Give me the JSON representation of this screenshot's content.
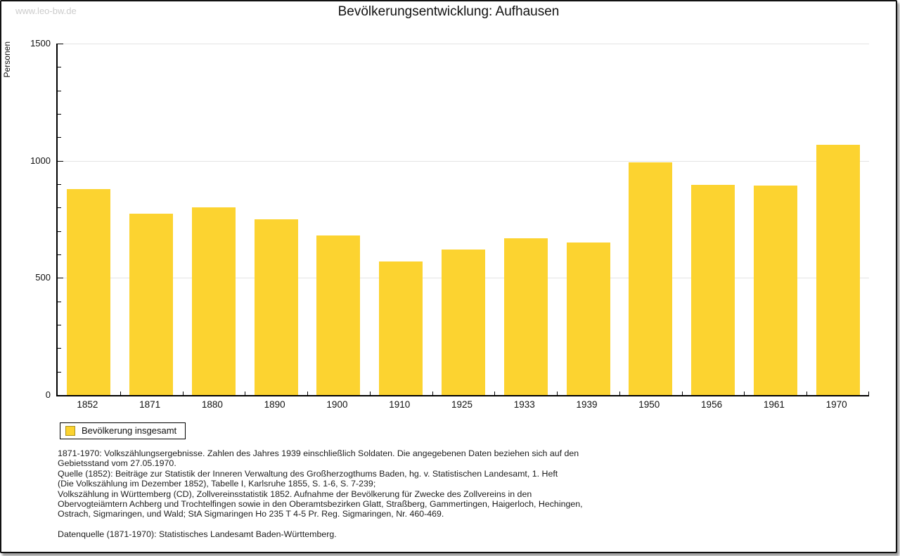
{
  "watermark": "www.leo-bw.de",
  "title": "Bevölkerungsentwicklung: Aufhausen",
  "chart_data": {
    "type": "bar",
    "title": "Bevölkerungsentwicklung: Aufhausen",
    "xlabel": "",
    "ylabel": "Personen",
    "categories": [
      "1852",
      "1871",
      "1880",
      "1890",
      "1900",
      "1910",
      "1925",
      "1933",
      "1939",
      "1950",
      "1956",
      "1961",
      "1970"
    ],
    "values": [
      880,
      775,
      800,
      750,
      682,
      570,
      620,
      670,
      652,
      993,
      896,
      893,
      1068
    ],
    "ylim": [
      0,
      1500
    ],
    "ytick_major": [
      0,
      500,
      1000,
      1500
    ],
    "ytick_minor_step": 100,
    "grid": "horizontal-at-major",
    "bar_color": "#FCD330",
    "gridline_color": "#e4e4e4",
    "legend_entries": [
      "Bevölkerung insgesamt"
    ],
    "legend_position": "bottom-left"
  },
  "legend": {
    "label": "Bevölkerung insgesamt",
    "swatch_color": "#FCD330"
  },
  "footnotes": {
    "lines": [
      "1871-1970: Volkszählungsergebnisse. Zahlen des Jahres 1939 einschließlich Soldaten. Die angegebenen Daten beziehen sich auf den",
      "Gebietsstand vom 27.05.1970.",
      "Quelle (1852): Beiträge zur Statistik der Inneren Verwaltung des Großherzogthums Baden, hg. v. Statistischen Landesamt, 1. Heft",
      "(Die Volkszählung im Dezember 1852), Tabelle I, Karlsruhe 1855, S. 1-6, S. 7-239;",
      "Volkszählung in Württemberg (CD), Zollvereinsstatistik 1852. Aufnahme der Bevölkerung für Zwecke des Zollvereins in den",
      "Obervogteiämtern Achberg und Trochtelfingen sowie in den Oberamtsbezirken Glatt, Straßberg, Gammertingen, Haigerloch, Hechingen,",
      "Ostrach, Sigmaringen, und Wald; StA Sigmaringen Ho 235 T 4-5 Pr. Reg. Sigmaringen, Nr. 460-469."
    ],
    "datasource": "Datenquelle (1871-1970): Statistisches Landesamt Baden-Württemberg."
  }
}
